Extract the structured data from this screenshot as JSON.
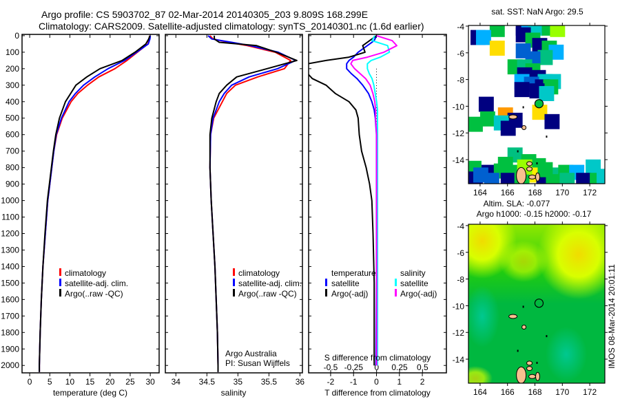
{
  "header": {
    "title_line1": "Argo profile: CS 5903702_87 02-Mar-2014 20140305_203 9.809S 168.299E",
    "title_line2": "Climatology: CARS2009. Satellite-adjusted climatology: synTS_20140301.nc (1.6d earlier)"
  },
  "colors": {
    "climatology": "#ff0000",
    "satellite": "#0000ff",
    "argo": "#000000",
    "sal_satellite": "#00ffff",
    "sal_argo": "#ff00ff"
  },
  "credits": {
    "org": "Argo Australia",
    "pi": "PI: Susan Wijffels",
    "stamp": "IMOS 08-Mar-2014 20:01:11"
  },
  "chart_data": [
    {
      "type": "line",
      "title": "",
      "xlabel": "temperature (deg C)",
      "ylabel": "",
      "xlim": [
        -1.9,
        32.2
      ],
      "ylim": [
        2045,
        -8
      ],
      "xticks": [
        0,
        5,
        10,
        15,
        20,
        25,
        30
      ],
      "yticks": [
        0,
        100,
        200,
        300,
        400,
        500,
        600,
        700,
        800,
        900,
        1000,
        1100,
        1200,
        1300,
        1400,
        1500,
        1600,
        1700,
        1800,
        1900,
        2000
      ],
      "depth": [
        0,
        20,
        50,
        100,
        150,
        200,
        250,
        300,
        350,
        400,
        500,
        600,
        700,
        800,
        900,
        1000,
        1200,
        1400,
        1600,
        1800,
        2000,
        2040
      ],
      "legend": [
        "climatology",
        "satellite-adj. clim.",
        "Argo(..raw -QC)"
      ],
      "series": [
        {
          "name": "climatology",
          "values": [
            29.8,
            29.8,
            29.4,
            26.8,
            24.2,
            21.2,
            17.2,
            14.4,
            12.0,
            10.3,
            8.1,
            6.7,
            6.0,
            5.5,
            5.0,
            4.5,
            3.9,
            3.3,
            2.9,
            2.6,
            2.4,
            2.4
          ]
        },
        {
          "name": "satellite-adj. clim.",
          "values": [
            30.0,
            29.9,
            29.5,
            26.6,
            23.6,
            19.5,
            16.2,
            13.4,
            11.4,
            9.8,
            7.9,
            6.6,
            6.0,
            5.5,
            5.0,
            4.5,
            3.9,
            3.3,
            2.9,
            2.6,
            2.4,
            2.4
          ]
        },
        {
          "name": "Argo(..raw -QC)",
          "values": [
            29.9,
            29.6,
            28.9,
            26.2,
            23.0,
            17.5,
            14.2,
            11.5,
            10.2,
            8.9,
            7.4,
            6.5,
            5.9,
            5.4,
            4.9,
            4.4,
            3.8,
            3.3,
            2.9,
            2.6,
            2.4,
            2.4
          ]
        }
      ]
    },
    {
      "type": "line",
      "xlabel": "salinity",
      "xlim": [
        33.83,
        36.04
      ],
      "ylim": [
        2045,
        -8
      ],
      "xticks": [
        34,
        34.5,
        35,
        35.5,
        36
      ],
      "depth": [
        0,
        20,
        40,
        60,
        100,
        150,
        200,
        250,
        300,
        350,
        400,
        500,
        600,
        800,
        1000,
        1200,
        1400,
        1600,
        1800,
        2000,
        2040
      ],
      "legend": [
        "climatology",
        "satellite-adj. clim.",
        "Argo(..raw -QC)"
      ],
      "series": [
        {
          "name": "climatology",
          "values": [
            34.55,
            34.6,
            34.85,
            35.15,
            35.6,
            35.85,
            35.75,
            35.32,
            34.96,
            34.82,
            34.75,
            34.61,
            34.56,
            34.55,
            34.57,
            34.6,
            34.63,
            34.65,
            34.67,
            34.68,
            34.68
          ]
        },
        {
          "name": "satellite-adj. clim.",
          "values": [
            34.52,
            34.58,
            34.9,
            35.2,
            35.65,
            35.93,
            35.64,
            35.18,
            34.9,
            34.78,
            34.7,
            34.6,
            34.56,
            34.55,
            34.57,
            34.6,
            34.63,
            34.65,
            34.67,
            34.68,
            34.68
          ]
        },
        {
          "name": "Argo(..raw -QC)",
          "values": [
            34.62,
            34.62,
            34.7,
            35.3,
            35.62,
            35.95,
            35.47,
            34.98,
            34.82,
            34.7,
            34.65,
            34.58,
            34.55,
            34.55,
            34.57,
            34.6,
            34.63,
            34.65,
            34.67,
            34.68,
            34.68
          ]
        }
      ]
    },
    {
      "type": "line",
      "xlabel": "T difference from climatology",
      "x2label": "S difference from climatology",
      "xlim": [
        -2.96,
        3.05
      ],
      "x2lim": [
        -0.74,
        0.76
      ],
      "ylim": [
        2045,
        -8
      ],
      "xticks": [
        -2,
        -1,
        0,
        1,
        2
      ],
      "x2ticks": [
        -0.5,
        -0.25,
        0,
        0.25,
        0.5
      ],
      "x2ticklabels": [
        "-0.5",
        "-0.25",
        "0",
        "0.25",
        "0.5"
      ],
      "depth": [
        0,
        30,
        60,
        100,
        130,
        150,
        170,
        200,
        230,
        260,
        300,
        350,
        400,
        450,
        500,
        600,
        700,
        800,
        900,
        1000,
        1200,
        1500,
        2000
      ],
      "legend": {
        "temperature_title": "temperature",
        "salinity_title": "salinity",
        "satellite": "satellite",
        "argo": "Argo(-adj)"
      },
      "series": [
        {
          "name": "T satellite",
          "axis": "T",
          "values": [
            0,
            -0.1,
            -0.4,
            -0.8,
            -1.0,
            -1.2,
            -1.3,
            -1.3,
            -1.1,
            -0.85,
            -0.6,
            -0.35,
            -0.2,
            -0.1,
            -0.05,
            0,
            0,
            0,
            0,
            0,
            0,
            0,
            -0.02
          ]
        },
        {
          "name": "T Argo(-adj)",
          "axis": "T",
          "values": [
            0,
            -0.3,
            -0.6,
            -0.5,
            -1.2,
            -2.2,
            -3.0,
            -3.0,
            -3.0,
            -2.8,
            -2.2,
            -1.8,
            -1.2,
            -0.9,
            -0.8,
            -0.75,
            -0.65,
            -0.45,
            -0.3,
            -0.2,
            -0.15,
            -0.1,
            -0.1
          ]
        },
        {
          "name": "S satellite",
          "axis": "S",
          "values": [
            -0.02,
            -0.05,
            0.12,
            0.14,
            0.04,
            -0.06,
            -0.1,
            -0.1,
            -0.08,
            -0.05,
            -0.03,
            -0.015,
            0,
            0.01,
            0.01,
            0.01,
            0.01,
            0.01,
            0.01,
            0.01,
            0.01,
            0.01,
            0.01
          ]
        },
        {
          "name": "S Argo(-adj)",
          "axis": "S",
          "values": [
            0,
            0.17,
            0.22,
            0.08,
            -0.1,
            -0.26,
            -0.28,
            -0.24,
            -0.18,
            -0.12,
            -0.07,
            -0.04,
            -0.02,
            -0.01,
            -0.01,
            0,
            0,
            0,
            0,
            0,
            0,
            0,
            0
          ]
        }
      ]
    },
    {
      "type": "heatmap",
      "title": "sat. SST: NaN Argo: 29.5",
      "xlim": [
        163.15,
        173.1
      ],
      "ylim": [
        -15.8,
        -3.95
      ],
      "xticks": [
        164,
        166,
        168,
        170,
        172
      ],
      "yticks": [
        -4,
        -6,
        -8,
        -10,
        -12,
        -14
      ],
      "argo_position": {
        "lon": 168.299,
        "lat": -9.809
      },
      "cells": [
        [
          165.2,
          -4.2,
          "#00c040"
        ],
        [
          167.1,
          -4.1,
          "#000080"
        ],
        [
          167.5,
          -4.0,
          "#00b0ff"
        ],
        [
          168.0,
          -4.1,
          "#00c8c8"
        ],
        [
          169.0,
          -4.1,
          "#00c040"
        ],
        [
          169.6,
          -4.2,
          "#99ff00"
        ],
        [
          163.8,
          -4.8,
          "#000080"
        ],
        [
          164.2,
          -4.8,
          "#00b0ff"
        ],
        [
          167.1,
          -4.6,
          "#000080"
        ],
        [
          165.2,
          -5.6,
          "#ffdd00"
        ],
        [
          167.8,
          -5.0,
          "#00c040"
        ],
        [
          168.3,
          -5.4,
          "#000080"
        ],
        [
          167.1,
          -5.8,
          "#0060d0"
        ],
        [
          169.0,
          -5.6,
          "#00c040"
        ],
        [
          169.5,
          -5.9,
          "#00b0ff"
        ],
        [
          168.7,
          -6.3,
          "#00c080"
        ],
        [
          167.8,
          -6.4,
          "#0060d0"
        ],
        [
          166.5,
          -7.0,
          "#00c040"
        ],
        [
          167.2,
          -7.0,
          "#00c080"
        ],
        [
          167.8,
          -7.3,
          "#00c040"
        ],
        [
          167.2,
          -7.6,
          "#000080"
        ],
        [
          168.2,
          -7.8,
          "#000080"
        ],
        [
          168.7,
          -8.1,
          "#00c8c8"
        ],
        [
          169.3,
          -8.1,
          "#00c8c8"
        ],
        [
          167.0,
          -8.1,
          "#00b0ff"
        ],
        [
          167.7,
          -8.3,
          "#0060d0"
        ],
        [
          168.5,
          -8.5,
          "#000080"
        ],
        [
          169.1,
          -8.5,
          "#00c040"
        ],
        [
          167.0,
          -8.7,
          "#000080"
        ],
        [
          168.1,
          -8.8,
          "#000080"
        ],
        [
          168.8,
          -9.0,
          "#00c8c8"
        ],
        [
          164.4,
          -9.8,
          "#000080"
        ],
        [
          168.3,
          -10.4,
          "#ffdd00"
        ],
        [
          165.8,
          -10.6,
          "#ff9900"
        ],
        [
          164.5,
          -10.9,
          "#00c040"
        ],
        [
          166.5,
          -11.0,
          "#000080"
        ],
        [
          165.5,
          -11.2,
          "#00c8c8"
        ],
        [
          163.6,
          -11.3,
          "#00c040"
        ],
        [
          166.0,
          -11.6,
          "#000080"
        ],
        [
          169.2,
          -11.1,
          "#000080"
        ],
        [
          172.2,
          -14.5,
          "#00c8c8"
        ],
        [
          166.5,
          -13.6,
          "#00c080"
        ],
        [
          167.5,
          -14.1,
          "#00c040"
        ],
        [
          168.2,
          -14.4,
          "#00c040"
        ],
        [
          163.5,
          -14.6,
          "#00c040"
        ],
        [
          164.6,
          -14.9,
          "#000080"
        ],
        [
          165.5,
          -14.8,
          "#00c040"
        ],
        [
          166.5,
          -14.9,
          "#00c040"
        ],
        [
          168.0,
          -15.1,
          "#ffee00"
        ],
        [
          169.5,
          -15.1,
          "#00c080"
        ],
        [
          170.2,
          -14.9,
          "#00c040"
        ],
        [
          171.0,
          -14.9,
          "#00b0ff"
        ],
        [
          163.6,
          -15.4,
          "#000080"
        ],
        [
          164.8,
          -15.5,
          "#0060d0"
        ],
        [
          166.0,
          -15.5,
          "#000080"
        ],
        [
          167.0,
          -15.2,
          "#00c040"
        ],
        [
          168.6,
          -15.5,
          "#000080"
        ],
        [
          169.3,
          -15.6,
          "#00c040"
        ],
        [
          170.3,
          -15.5,
          "#00c080"
        ],
        [
          171.5,
          -15.5,
          "#000080"
        ],
        [
          172.5,
          -15.5,
          "#00c040"
        ],
        [
          173.0,
          -15.2,
          "#00c8c8"
        ],
        [
          164.0,
          -15.1,
          "#0060d0"
        ],
        [
          167.2,
          -14.5,
          "#99ff00"
        ],
        [
          168.7,
          -14.7,
          "#00c040"
        ],
        [
          165.8,
          -14.3,
          "#00c040"
        ]
      ]
    },
    {
      "type": "heatmap",
      "title": "Altim. SLA: -0.077",
      "subtitle": "Argo h1000: -0.15 h2000: -0.17",
      "xlim": [
        163.15,
        173.1
      ],
      "ylim": [
        -15.8,
        -3.9
      ],
      "xticks": [
        164,
        166,
        168,
        170,
        172
      ],
      "yticks": [
        -4,
        -6,
        -8,
        -10,
        -12,
        -14
      ],
      "argo_position": {
        "lon": 168.299,
        "lat": -9.809
      }
    }
  ]
}
